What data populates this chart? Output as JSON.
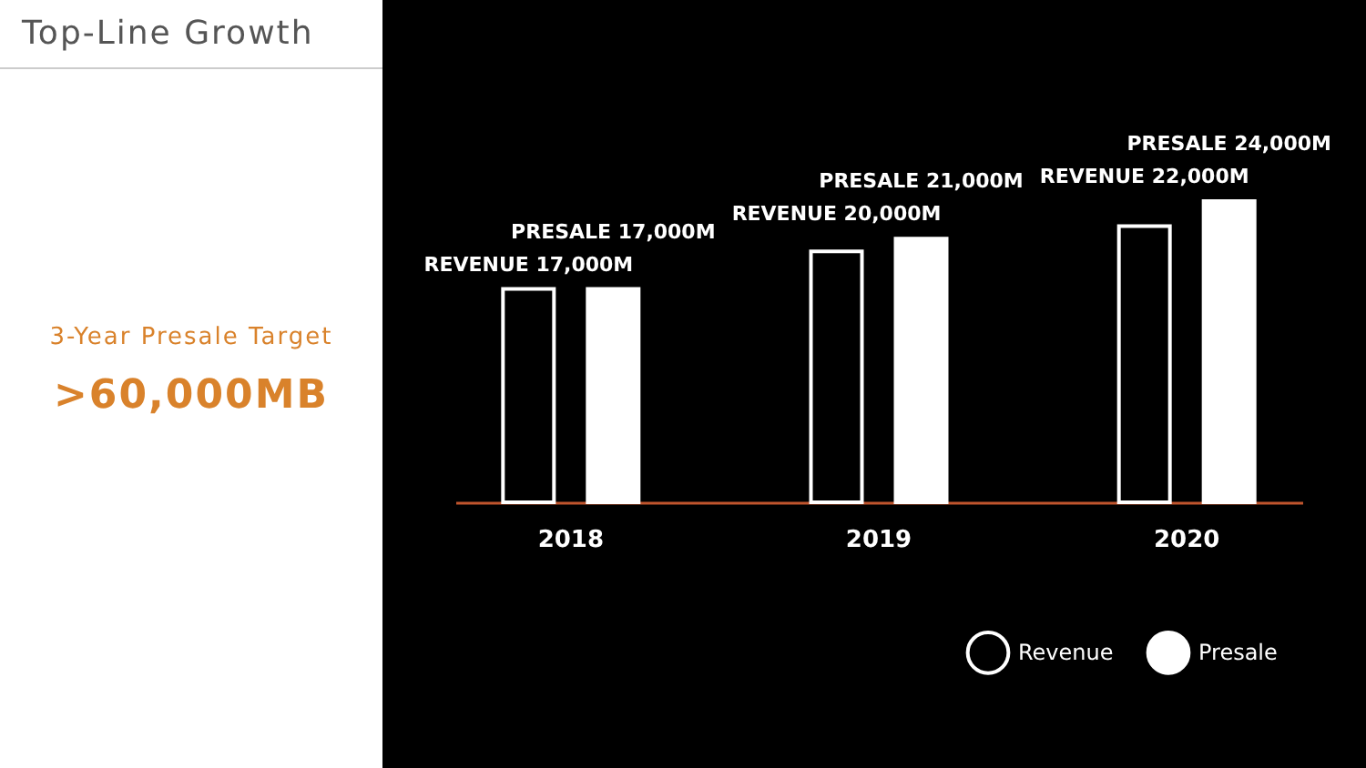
{
  "chart_data": {
    "type": "bar",
    "title": "Top-Line Growth",
    "annotations": [
      "3-Year Presale Target",
      ">60,000MB"
    ],
    "categories": [
      "2018",
      "2019",
      "2020"
    ],
    "series": [
      {
        "name": "Revenue",
        "color": "#000000",
        "values": [
          17000000000,
          20000000000,
          22000000000
        ],
        "value_labels": [
          "REVENUE 17,000M",
          "REVENUE 20,000M",
          "REVENUE 22,000M"
        ]
      },
      {
        "name": "Presale",
        "color": "#ffffff",
        "values": [
          17000000000,
          21000000000,
          24000000000
        ],
        "value_labels": [
          "PRESALE 17,000M",
          "PRESALE 21,000M",
          "PRESALE 24,000M"
        ]
      }
    ],
    "legend": "bottom right"
  }
}
